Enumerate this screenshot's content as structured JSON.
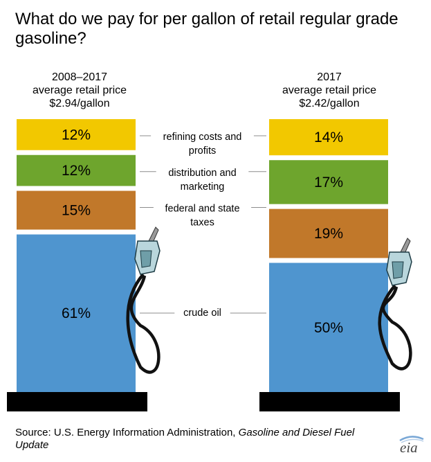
{
  "title": "What do we pay for per gallon of retail regular grade gasoline?",
  "columns": [
    {
      "period": "2008–2017",
      "subtitle": "average retail price",
      "price": "$2.94/gallon"
    },
    {
      "period": "2017",
      "subtitle": "average retail price",
      "price": "$2.42/gallon"
    }
  ],
  "source": {
    "prefix": "Source: U.S. Energy Information Administration, ",
    "italic": "Gasoline and Diesel Fuel Update"
  },
  "logo": "eia",
  "icons": [
    "gas-pump-nozzle-icon",
    "eia-logo"
  ],
  "colors": {
    "refining": "#f2c800",
    "distribution": "#6ea52d",
    "taxes": "#c1782a",
    "crude": "#4f95cf",
    "base": "#000000",
    "leader": "#8c8c8c"
  },
  "chart_data": {
    "type": "bar",
    "stacked": true,
    "orientation": "vertical",
    "unit": "%",
    "categories": [
      "2008–2017",
      "2017"
    ],
    "series": [
      {
        "name": "refining costs and profits",
        "values": [
          12,
          14
        ],
        "labels": [
          "12%",
          "14%"
        ]
      },
      {
        "name": "distribution and marketing",
        "values": [
          12,
          17
        ],
        "labels": [
          "12%",
          "17%"
        ]
      },
      {
        "name": "federal and state taxes",
        "values": [
          15,
          19
        ],
        "labels": [
          "15%",
          "19%"
        ]
      },
      {
        "name": "crude oil",
        "values": [
          61,
          50
        ],
        "labels": [
          "61%",
          "50%"
        ]
      }
    ],
    "category_labels": [
      [
        "refining costs and",
        "profits"
      ],
      [
        "distribution and",
        "marketing"
      ],
      [
        "federal and state",
        "taxes"
      ],
      [
        "crude oil"
      ]
    ],
    "legend": "center"
  }
}
